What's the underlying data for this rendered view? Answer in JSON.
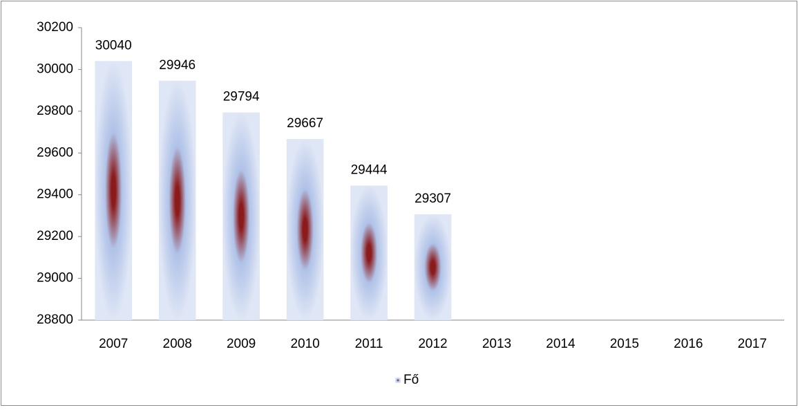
{
  "chart_data": {
    "type": "bar",
    "categories": [
      "2007",
      "2008",
      "2009",
      "2010",
      "2011",
      "2012",
      "2013",
      "2014",
      "2015",
      "2016",
      "2017"
    ],
    "series": [
      {
        "name": "Fő",
        "values": [
          30040,
          29946,
          29794,
          29667,
          29444,
          29307,
          null,
          null,
          null,
          null,
          null
        ],
        "gradient": [
          "#8b1a1a",
          "#b0c2e8",
          "#dfe6f5"
        ]
      }
    ],
    "ylim": [
      28800,
      30200
    ],
    "yticks": [
      28800,
      29000,
      29200,
      29400,
      29600,
      29800,
      30000,
      30200
    ],
    "grid": false,
    "legend": "bottom"
  }
}
